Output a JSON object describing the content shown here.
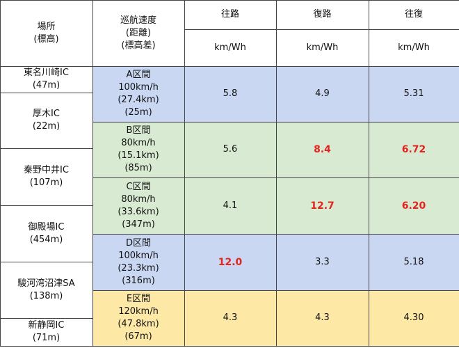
{
  "header": {
    "location": [
      "場所",
      "(標高)"
    ],
    "cruise": [
      "巡航速度",
      "(距離)",
      "(標高差)"
    ],
    "directions": [
      "往路",
      "復路",
      "往復"
    ],
    "units": [
      "km/Wh",
      "km/Wh",
      "km/Wh"
    ]
  },
  "locations": [
    {
      "name": "東名川崎IC",
      "elevation": "(47m)"
    },
    {
      "name": "厚木IC",
      "elevation": "(22m)"
    },
    {
      "name": "秦野中井IC",
      "elevation": "(107m)"
    },
    {
      "name": "御殿場IC",
      "elevation": "(454m)"
    },
    {
      "name": "駿河湾沼津SA",
      "elevation": "(138m)"
    },
    {
      "name": "新静岡IC",
      "elevation": "(71m)"
    }
  ],
  "sections": [
    {
      "name": "A区間",
      "speed": "100km/h",
      "distance": "(27.4km)",
      "elevation": "(25m)",
      "color": "#c9d7f2",
      "values": [
        "5.8",
        "4.9",
        "5.31"
      ],
      "highlight": [
        false,
        false,
        false
      ]
    },
    {
      "name": "B区間",
      "speed": "80km/h",
      "distance": "(15.1km)",
      "elevation": "(85m)",
      "color": "#d9ead3",
      "values": [
        "5.6",
        "8.4",
        "6.72"
      ],
      "highlight": [
        false,
        true,
        true
      ]
    },
    {
      "name": "C区間",
      "speed": "80km/h",
      "distance": "(33.6km)",
      "elevation": "(347m)",
      "color": "#d9ead3",
      "values": [
        "4.1",
        "12.7",
        "6.20"
      ],
      "highlight": [
        false,
        true,
        true
      ]
    },
    {
      "name": "D区間",
      "speed": "100km/h",
      "distance": "(23.3km)",
      "elevation": "(316m)",
      "color": "#c9d7f2",
      "values": [
        "12.0",
        "3.3",
        "5.18"
      ],
      "highlight": [
        true,
        false,
        false
      ]
    },
    {
      "name": "E区間",
      "speed": "120km/h",
      "distance": "(47.8km)",
      "elevation": "(67m)",
      "color": "#fde8a6",
      "values": [
        "4.3",
        "4.3",
        "4.30"
      ],
      "highlight": [
        false,
        false,
        false
      ]
    }
  ]
}
